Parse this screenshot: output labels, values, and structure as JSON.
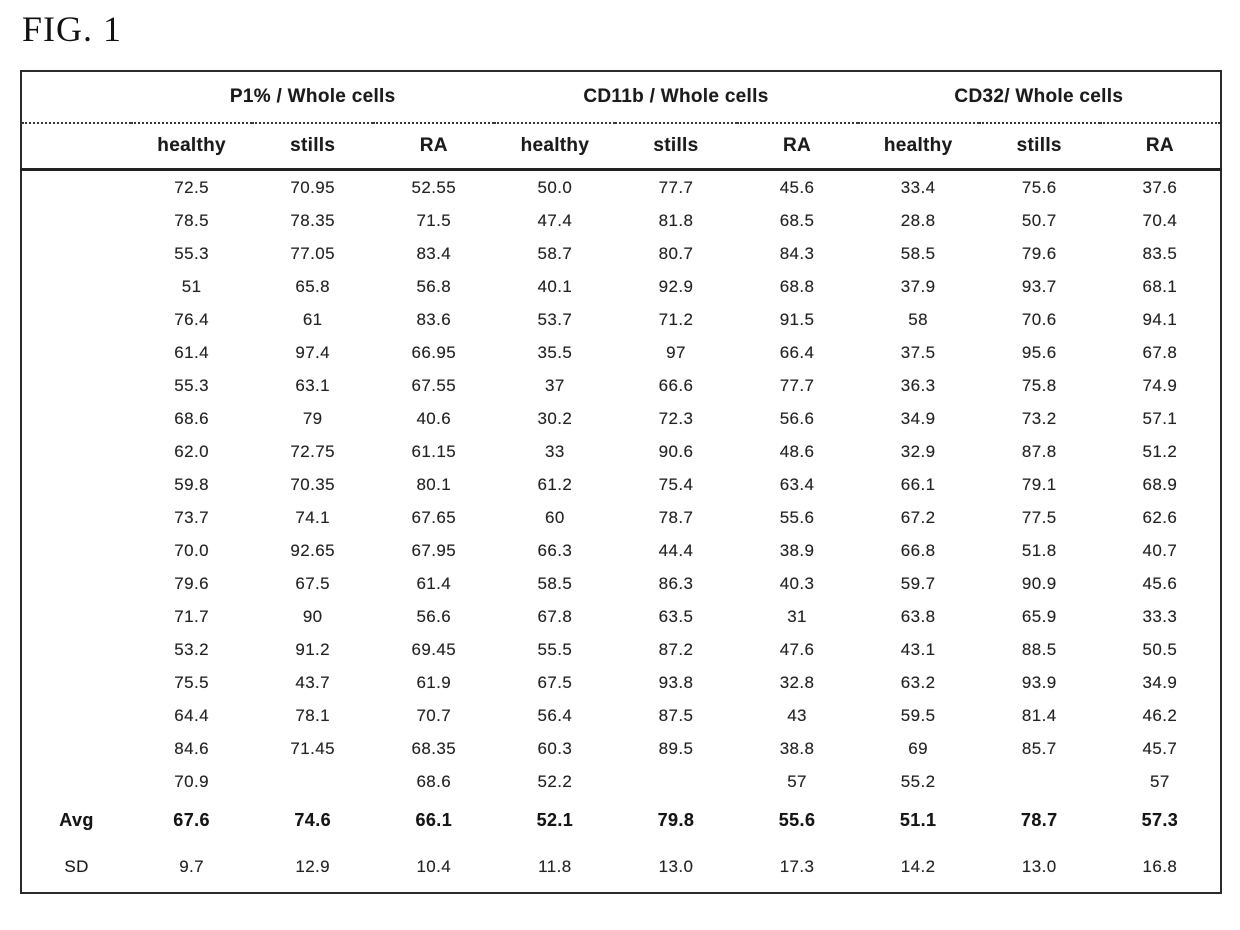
{
  "figure_label": "FIG. 1",
  "table": {
    "groups": [
      {
        "label": "P1% / Whole cells"
      },
      {
        "label": "CD11b / Whole cells"
      },
      {
        "label": "CD32/ Whole cells"
      }
    ],
    "sub_headers": [
      "healthy",
      "stills",
      "RA",
      "healthy",
      "stills",
      "RA",
      "healthy",
      "stills",
      "RA"
    ],
    "rows": [
      [
        "72.5",
        "70.95",
        "52.55",
        "50.0",
        "77.7",
        "45.6",
        "33.4",
        "75.6",
        "37.6"
      ],
      [
        "78.5",
        "78.35",
        "71.5",
        "47.4",
        "81.8",
        "68.5",
        "28.8",
        "50.7",
        "70.4"
      ],
      [
        "55.3",
        "77.05",
        "83.4",
        "58.7",
        "80.7",
        "84.3",
        "58.5",
        "79.6",
        "83.5"
      ],
      [
        "51",
        "65.8",
        "56.8",
        "40.1",
        "92.9",
        "68.8",
        "37.9",
        "93.7",
        "68.1"
      ],
      [
        "76.4",
        "61",
        "83.6",
        "53.7",
        "71.2",
        "91.5",
        "58",
        "70.6",
        "94.1"
      ],
      [
        "61.4",
        "97.4",
        "66.95",
        "35.5",
        "97",
        "66.4",
        "37.5",
        "95.6",
        "67.8"
      ],
      [
        "55.3",
        "63.1",
        "67.55",
        "37",
        "66.6",
        "77.7",
        "36.3",
        "75.8",
        "74.9"
      ],
      [
        "68.6",
        "79",
        "40.6",
        "30.2",
        "72.3",
        "56.6",
        "34.9",
        "73.2",
        "57.1"
      ],
      [
        "62.0",
        "72.75",
        "61.15",
        "33",
        "90.6",
        "48.6",
        "32.9",
        "87.8",
        "51.2"
      ],
      [
        "59.8",
        "70.35",
        "80.1",
        "61.2",
        "75.4",
        "63.4",
        "66.1",
        "79.1",
        "68.9"
      ],
      [
        "73.7",
        "74.1",
        "67.65",
        "60",
        "78.7",
        "55.6",
        "67.2",
        "77.5",
        "62.6"
      ],
      [
        "70.0",
        "92.65",
        "67.95",
        "66.3",
        "44.4",
        "38.9",
        "66.8",
        "51.8",
        "40.7"
      ],
      [
        "79.6",
        "67.5",
        "61.4",
        "58.5",
        "86.3",
        "40.3",
        "59.7",
        "90.9",
        "45.6"
      ],
      [
        "71.7",
        "90",
        "56.6",
        "67.8",
        "63.5",
        "31",
        "63.8",
        "65.9",
        "33.3"
      ],
      [
        "53.2",
        "91.2",
        "69.45",
        "55.5",
        "87.2",
        "47.6",
        "43.1",
        "88.5",
        "50.5"
      ],
      [
        "75.5",
        "43.7",
        "61.9",
        "67.5",
        "93.8",
        "32.8",
        "63.2",
        "93.9",
        "34.9"
      ],
      [
        "64.4",
        "78.1",
        "70.7",
        "56.4",
        "87.5",
        "43",
        "59.5",
        "81.4",
        "46.2"
      ],
      [
        "84.6",
        "71.45",
        "68.35",
        "60.3",
        "89.5",
        "38.8",
        "69",
        "85.7",
        "45.7"
      ],
      [
        "70.9",
        "",
        "68.6",
        "52.2",
        "",
        "57",
        "55.2",
        "",
        "57"
      ]
    ],
    "avg": {
      "label": "Avg",
      "values": [
        "67.6",
        "74.6",
        "66.1",
        "52.1",
        "79.8",
        "55.6",
        "51.1",
        "78.7",
        "57.3"
      ]
    },
    "sd": {
      "label": "SD",
      "values": [
        "9.7",
        "12.9",
        "10.4",
        "11.8",
        "13.0",
        "17.3",
        "14.2",
        "13.0",
        "16.8"
      ]
    }
  }
}
